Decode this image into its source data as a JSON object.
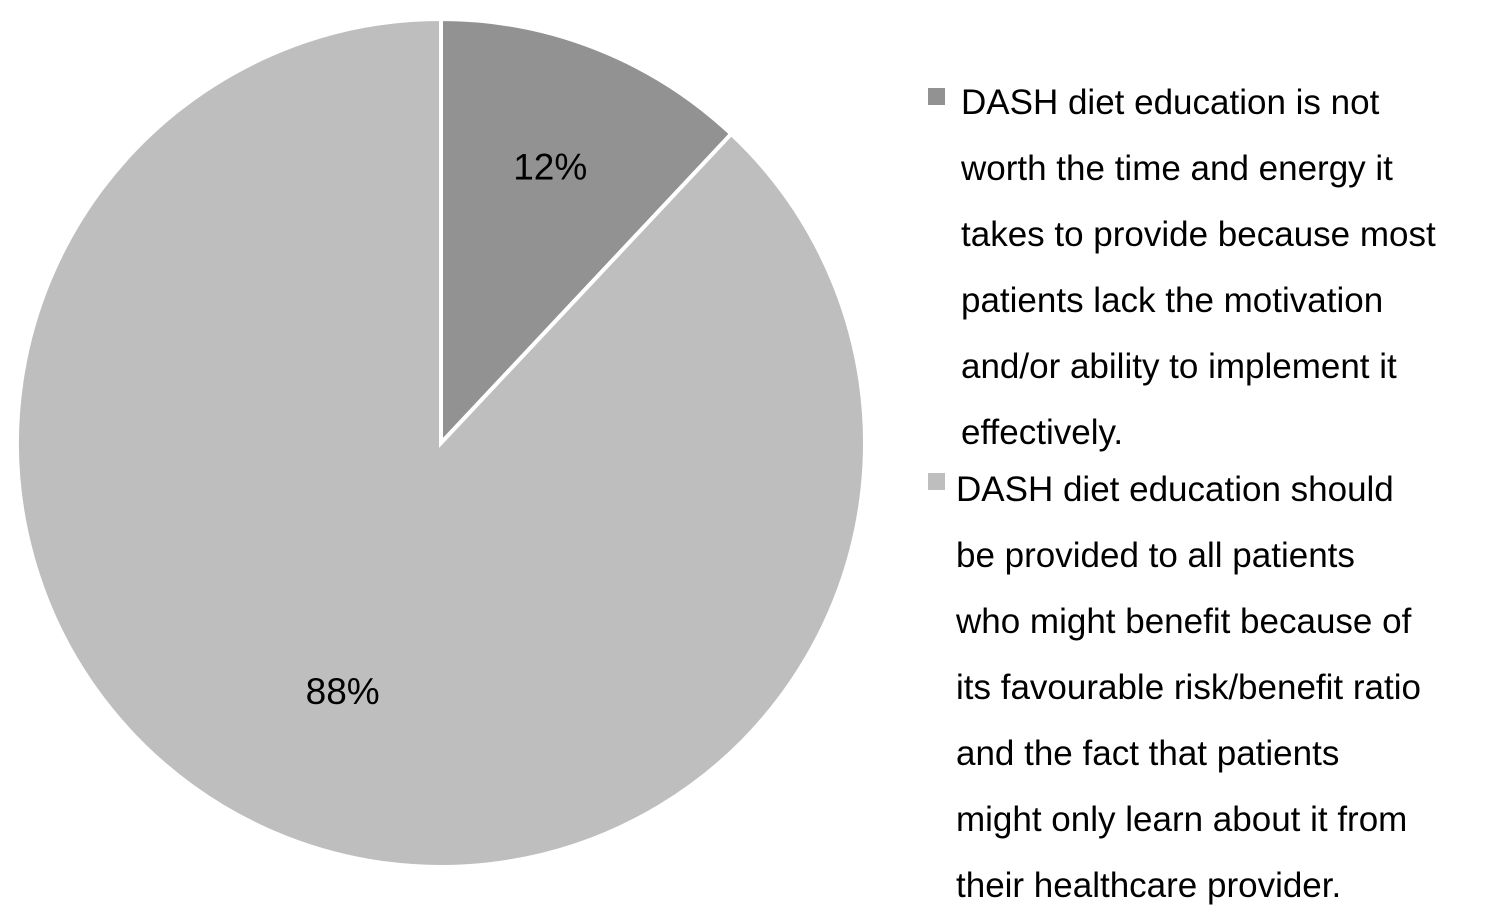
{
  "chart_data": {
    "type": "pie",
    "title": "",
    "legend_position": "right",
    "slices": [
      {
        "label": "DASH diet education is not\nworth the time and energy it\ntakes to provide because most\npatients lack the motivation\nand/or ability to implement it\neffectively.",
        "value": 12,
        "value_label": "12%",
        "color": "#929292"
      },
      {
        "label": "DASH diet education should\nbe provided to all patients\nwho might benefit because of\nits favourable risk/benefit ratio\nand the fact that patients\nmight only learn about it from\ntheir healthcare provider.",
        "value": 88,
        "value_label": "88%",
        "color": "#bfbebf"
      }
    ]
  }
}
